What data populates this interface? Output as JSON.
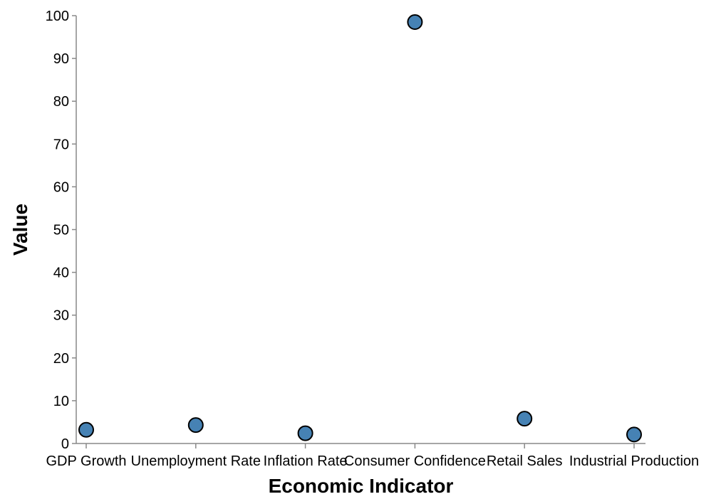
{
  "chart_data": {
    "type": "scatter",
    "categories": [
      "GDP Growth",
      "Unemployment Rate",
      "Inflation Rate",
      "Consumer Confidence",
      "Retail Sales",
      "Industrial Production"
    ],
    "series": [
      {
        "values": [
          3.2,
          4.3,
          2.4,
          98.5,
          5.8,
          2.1
        ]
      }
    ],
    "xlabel": "Economic Indicator",
    "ylabel": "Value",
    "ylim": [
      0,
      100
    ],
    "yticks": [
      0,
      10,
      20,
      30,
      40,
      50,
      60,
      70,
      80,
      90,
      100
    ],
    "grid": false,
    "point_color": "#4682b4"
  }
}
